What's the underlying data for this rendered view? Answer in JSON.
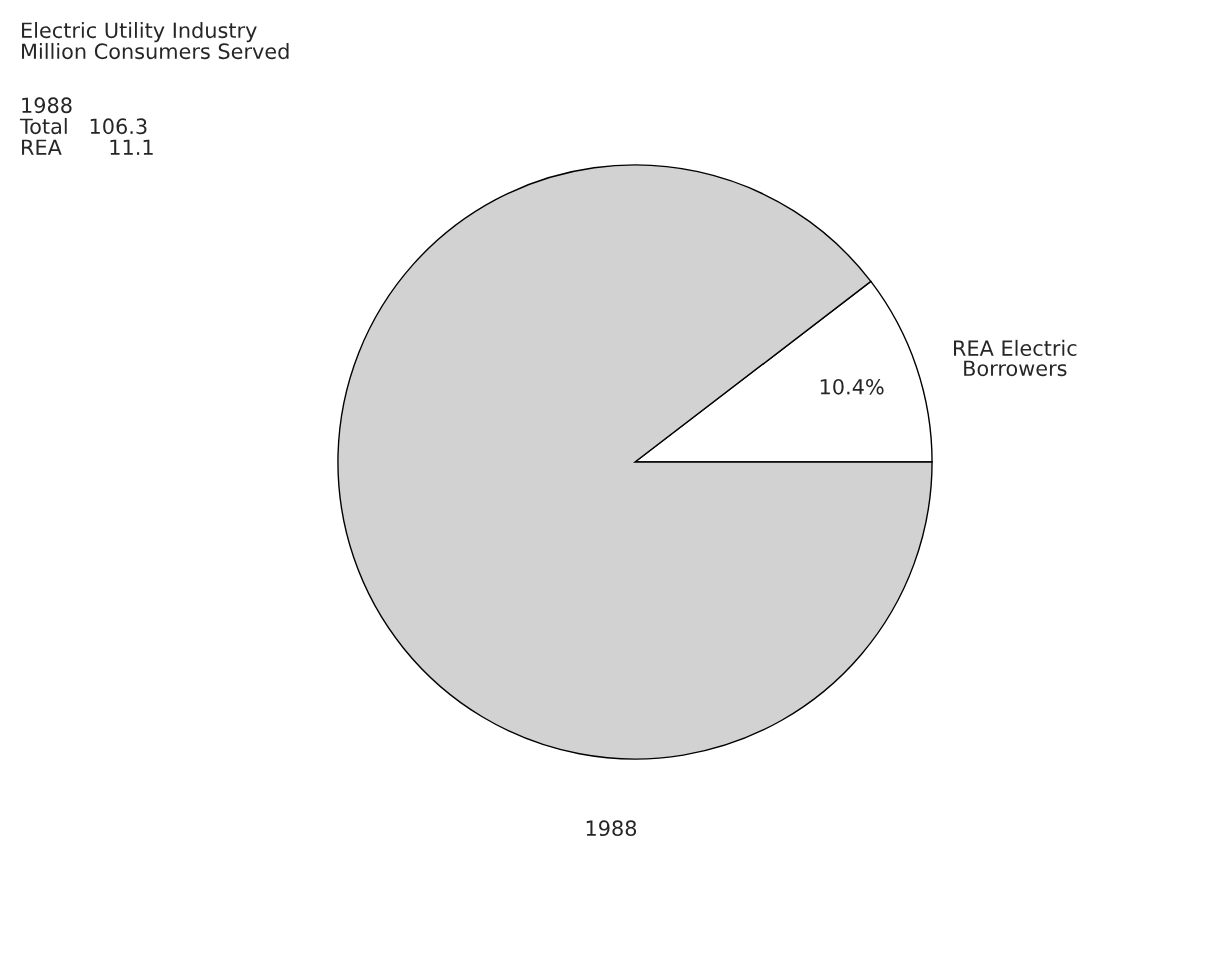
{
  "chart_data": {
    "type": "pie",
    "title": "Electric Utility Industry",
    "subtitle": "Million Consumers Served",
    "xlabel": "1988",
    "annotations": [
      "1988",
      "Total   106.3",
      "REA       11.1"
    ],
    "categories": [
      "REA Electric\nBorrowers",
      null
    ],
    "values": [
      10.4,
      89.6
    ],
    "colors": [
      "#ffffff",
      "#d2d2d2"
    ],
    "value_labels": [
      "10.4%",
      null
    ]
  }
}
